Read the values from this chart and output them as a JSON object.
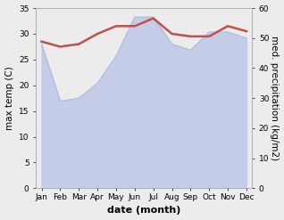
{
  "months": [
    "Jan",
    "Feb",
    "Mar",
    "Apr",
    "May",
    "Jun",
    "Jul",
    "Aug",
    "Sep",
    "Oct",
    "Nov",
    "Dec"
  ],
  "month_indices": [
    0,
    1,
    2,
    3,
    4,
    5,
    6,
    7,
    8,
    9,
    10,
    11
  ],
  "temp_max": [
    28.5,
    27.5,
    28.0,
    30.0,
    31.5,
    31.5,
    33.0,
    30.0,
    29.5,
    29.5,
    31.5,
    30.5
  ],
  "precip": [
    48.0,
    29.0,
    30.0,
    35.0,
    44.0,
    57.0,
    57.0,
    48.0,
    46.0,
    52.0,
    52.0,
    50.0
  ],
  "temp_color": "#c0504d",
  "precip_fill_color": "#c5cce8",
  "precip_line_color": "#b0bada",
  "ylim_temp": [
    0,
    35
  ],
  "ylim_precip": [
    0,
    60
  ],
  "yticks_temp": [
    0,
    5,
    10,
    15,
    20,
    25,
    30,
    35
  ],
  "yticks_precip": [
    0,
    10,
    20,
    30,
    40,
    50,
    60
  ],
  "xlabel": "date (month)",
  "ylabel_left": "max temp (C)",
  "ylabel_right": "med. precipitation (kg/m2)",
  "bg_color": "#ececec",
  "plot_bg_color": "#ffffff",
  "label_fontsize": 7.5,
  "tick_fontsize": 6.5,
  "xlabel_fontsize": 8
}
